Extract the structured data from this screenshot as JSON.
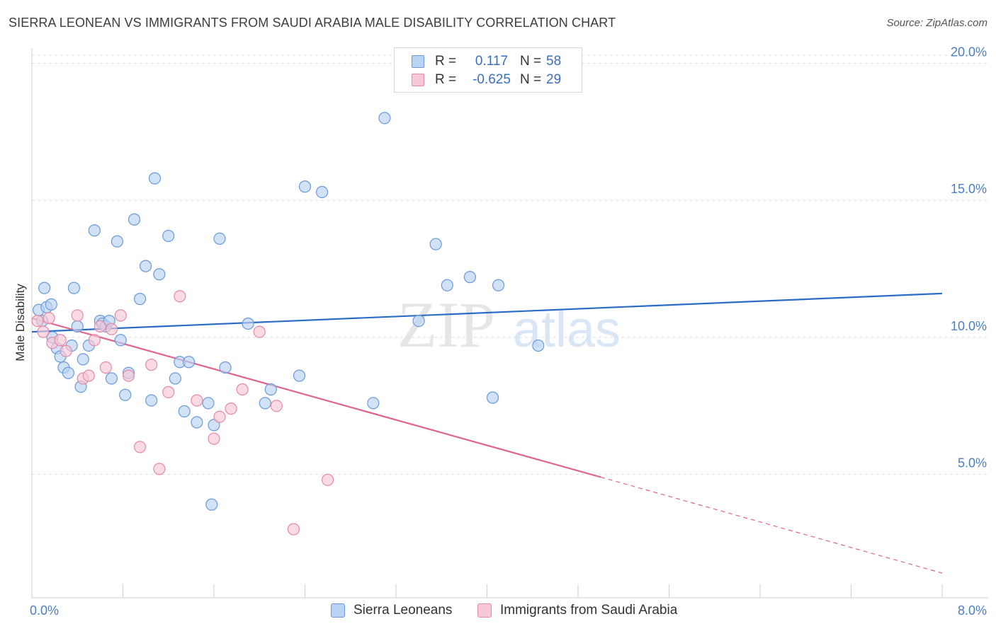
{
  "header": {
    "title": "SIERRA LEONEAN VS IMMIGRANTS FROM SAUDI ARABIA MALE DISABILITY CORRELATION CHART",
    "source": "Source: ZipAtlas.com"
  },
  "watermark": {
    "text_zip": "ZIP",
    "text_atlas": "atlas"
  },
  "legend_top": {
    "rows": [
      {
        "r_label": "R =",
        "r_value": "0.117",
        "n_label": "N =",
        "n_value": "58"
      },
      {
        "r_label": "R =",
        "r_value": "-0.625",
        "n_label": "N =",
        "n_value": "29"
      }
    ]
  },
  "legend_bottom": {
    "items": [
      {
        "label": "Sierra Leoneans"
      },
      {
        "label": "Immigrants from Saudi Arabia"
      }
    ]
  },
  "colors": {
    "blue_fill": "#b8d3f3",
    "blue_stroke": "#6a9ad8",
    "blue_line": "#2a6cc6",
    "pink_fill": "#f7c8d6",
    "pink_stroke": "#e38aa6",
    "pink_line": "#e0648f",
    "grid": "#dcdcdc",
    "tick_text": "#4a7fc1"
  },
  "chart_data": {
    "type": "scatter",
    "title": "SIERRA LEONEAN VS IMMIGRANTS FROM SAUDI ARABIA MALE DISABILITY CORRELATION CHART",
    "xlabel": "",
    "ylabel": "Male Disability",
    "xlim": [
      0,
      8.0
    ],
    "ylim": [
      0.5,
      20.5
    ],
    "x_tick_labels": [
      "0.0%",
      "8.0%"
    ],
    "y_ticks": [
      5.0,
      10.0,
      15.0,
      20.0
    ],
    "y_tick_labels": [
      "5.0%",
      "10.0%",
      "15.0%",
      "20.0%"
    ],
    "grid": true,
    "legend_placement": "top-center",
    "series": [
      {
        "name": "Sierra Leoneans",
        "color": "#6a9ad8",
        "x": [
          0.06,
          0.09,
          0.11,
          0.13,
          0.17,
          0.18,
          0.22,
          0.25,
          0.28,
          0.32,
          0.35,
          0.37,
          0.4,
          0.43,
          0.45,
          0.5,
          0.55,
          0.6,
          0.62,
          0.65,
          0.68,
          0.7,
          0.75,
          0.78,
          0.82,
          0.85,
          0.9,
          0.95,
          1.0,
          1.05,
          1.08,
          1.12,
          1.2,
          1.26,
          1.3,
          1.34,
          1.38,
          1.45,
          1.55,
          1.58,
          1.6,
          1.65,
          1.7,
          1.9,
          2.05,
          2.1,
          2.35,
          2.4,
          2.55,
          3.0,
          3.1,
          3.4,
          3.55,
          3.65,
          3.85,
          4.05,
          4.1,
          4.45
        ],
        "y": [
          11.0,
          10.6,
          11.8,
          11.1,
          11.2,
          10.0,
          9.6,
          9.3,
          8.9,
          8.7,
          9.7,
          11.8,
          10.4,
          8.2,
          9.2,
          9.7,
          13.9,
          10.6,
          10.5,
          10.4,
          10.6,
          8.5,
          13.5,
          9.9,
          7.9,
          8.7,
          14.3,
          11.4,
          12.6,
          7.7,
          15.8,
          12.3,
          13.7,
          8.5,
          9.1,
          7.3,
          9.1,
          6.9,
          7.6,
          3.9,
          6.8,
          13.6,
          8.9,
          10.5,
          7.6,
          8.1,
          8.6,
          15.5,
          15.3,
          7.6,
          18.0,
          10.6,
          13.4,
          11.9,
          12.2,
          7.8,
          11.9,
          9.7
        ]
      },
      {
        "name": "Immigrants from Saudi Arabia",
        "color": "#e38aa6",
        "x": [
          0.05,
          0.1,
          0.15,
          0.18,
          0.25,
          0.3,
          0.4,
          0.45,
          0.5,
          0.55,
          0.6,
          0.65,
          0.7,
          0.78,
          0.85,
          0.95,
          1.05,
          1.12,
          1.2,
          1.3,
          1.45,
          1.6,
          1.65,
          1.75,
          1.85,
          2.0,
          2.15,
          2.3,
          2.6
        ],
        "y": [
          10.6,
          10.2,
          10.7,
          9.8,
          9.9,
          9.5,
          10.8,
          8.5,
          8.6,
          9.9,
          10.4,
          8.9,
          10.3,
          10.8,
          8.6,
          6.0,
          9.0,
          5.2,
          8.0,
          11.5,
          7.7,
          6.3,
          7.1,
          7.4,
          8.1,
          10.2,
          7.5,
          3.0,
          4.8
        ]
      }
    ],
    "trendlines": [
      {
        "series": "Sierra Leoneans",
        "x": [
          0.0,
          8.0
        ],
        "y": [
          10.2,
          11.6
        ],
        "style": "solid"
      },
      {
        "series": "Immigrants from Saudi Arabia",
        "x": [
          0.0,
          5.0
        ],
        "y": [
          10.7,
          4.9
        ],
        "style": "solid"
      },
      {
        "series": "Immigrants from Saudi Arabia",
        "x": [
          5.0,
          8.0
        ],
        "y": [
          4.9,
          1.4
        ],
        "style": "dashed"
      }
    ]
  }
}
